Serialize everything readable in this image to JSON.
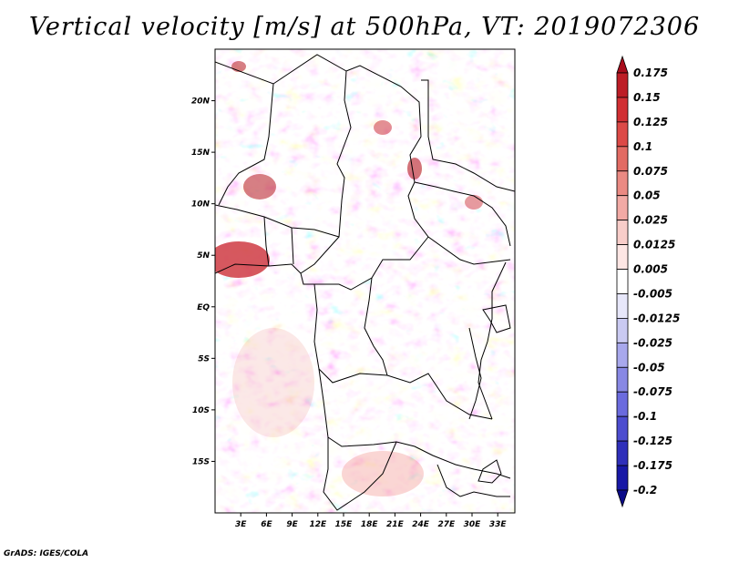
{
  "chart_data": {
    "type": "heatmap",
    "title": "Vertical velocity [m/s] at 500hPa, VT: 2019072306",
    "x_tick_labels": [
      "3E",
      "6E",
      "9E",
      "12E",
      "15E",
      "18E",
      "21E",
      "24E",
      "27E",
      "30E",
      "33E"
    ],
    "x_ticks": [
      3,
      6,
      9,
      12,
      15,
      18,
      21,
      24,
      27,
      30,
      33
    ],
    "y_tick_labels": [
      "20N",
      "15N",
      "10N",
      "5N",
      "EQ",
      "5S",
      "10S",
      "15S"
    ],
    "y_ticks": [
      20,
      15,
      10,
      5,
      0,
      -5,
      -10,
      -15
    ],
    "xlim": [
      0,
      35
    ],
    "ylim": [
      -20,
      25
    ],
    "colorbar": {
      "levels": [
        "0.175",
        "0.15",
        "0.125",
        "0.1",
        "0.075",
        "0.05",
        "0.025",
        "0.0125",
        "0.005",
        "-0.005",
        "-0.0125",
        "-0.025",
        "-0.05",
        "-0.075",
        "-0.1",
        "-0.125",
        "-0.175",
        "-0.2"
      ],
      "colors": [
        "#a80c1c",
        "#bd1d26",
        "#d12f33",
        "#dc4a47",
        "#e26b63",
        "#ea8a83",
        "#f2aaa5",
        "#f8cdc9",
        "#fde6e4",
        "#ffffff",
        "#e7e7fa",
        "#cacaf2",
        "#a8a8ec",
        "#8888e4",
        "#6b6bde",
        "#4d4dcf",
        "#2f2fba",
        "#1818a6",
        "#0a0a88"
      ]
    },
    "notes": "2D field; values shown as filled color shading with contours"
  },
  "footer": "GrADS: IGES/COLA"
}
